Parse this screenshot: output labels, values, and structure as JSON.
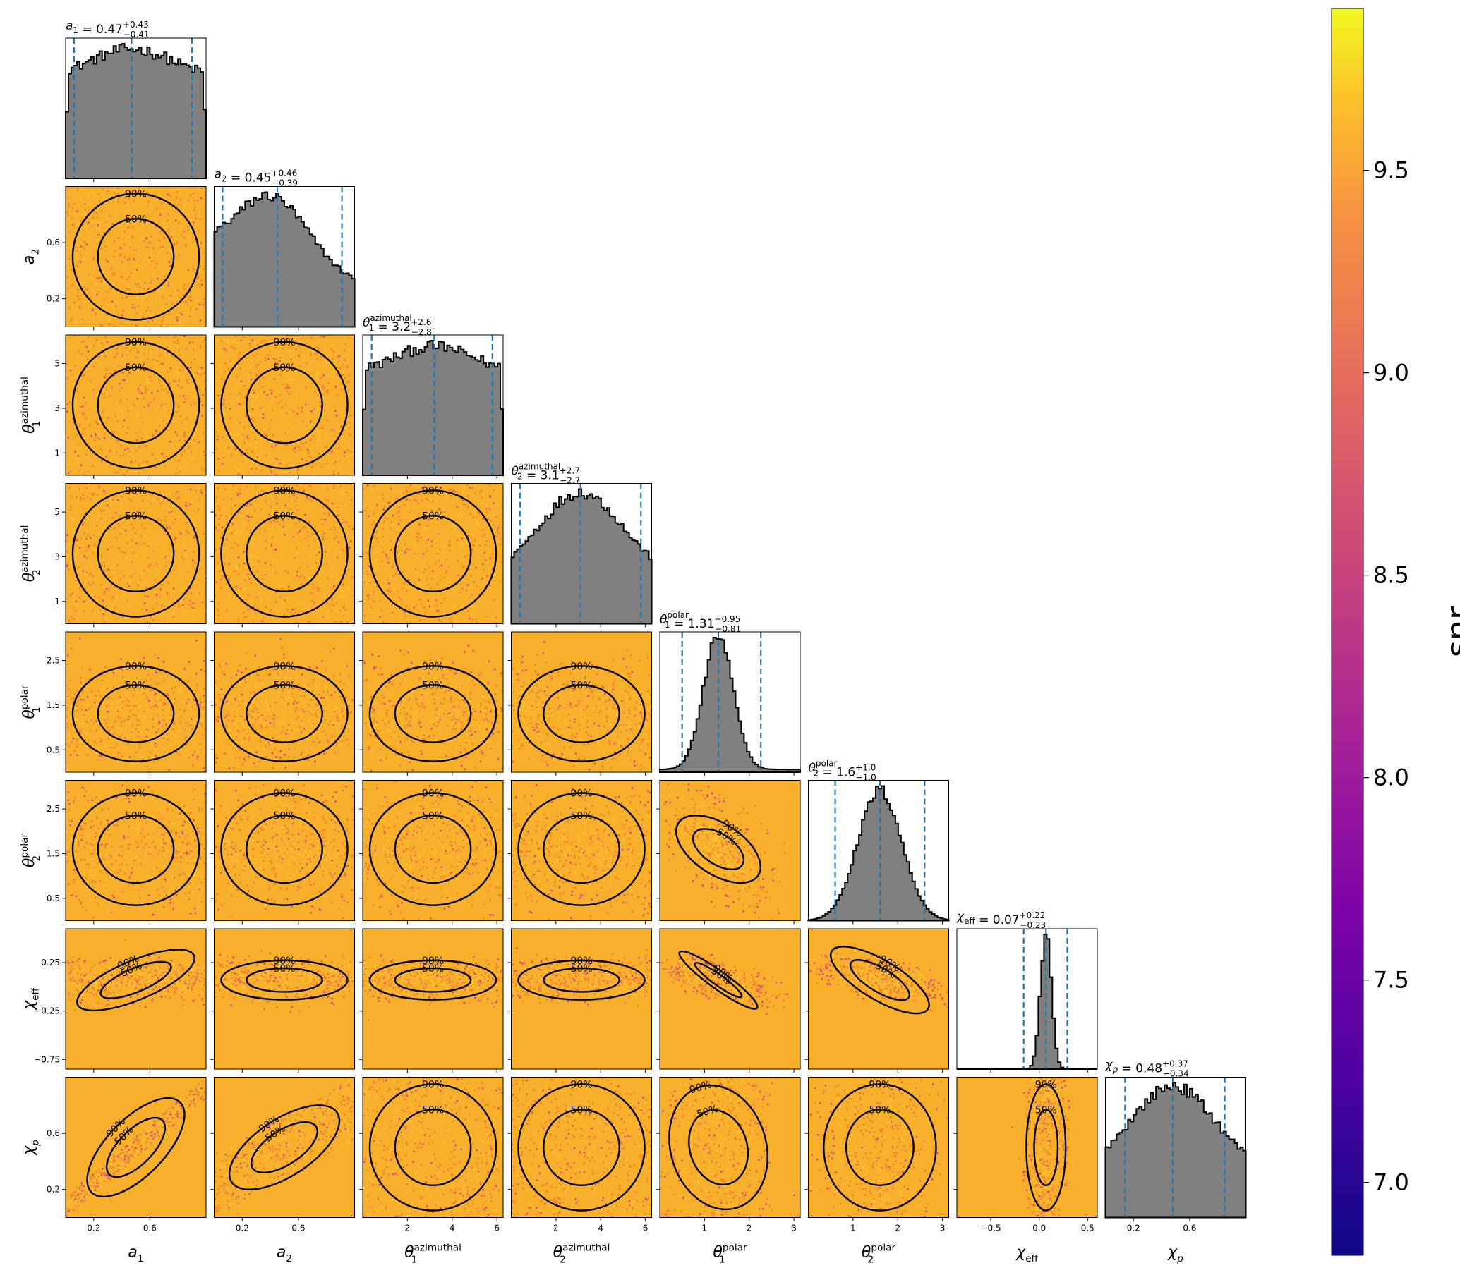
{
  "chart_data": {
    "type": "corner",
    "parameters": [
      {
        "key": "a1",
        "label": "a",
        "sub": "1",
        "sup": "",
        "range": [
          0.0,
          1.0
        ],
        "ticks": [
          {
            "v": 0.2,
            "t": "0.2"
          },
          {
            "v": 0.6,
            "t": "0.6"
          }
        ],
        "title_value": "0.47",
        "title_plus": "+0.43",
        "title_minus": "−0.41",
        "quantiles": [
          0.06,
          0.47,
          0.9
        ],
        "hist_shape": "flat",
        "median": 0.47
      },
      {
        "key": "a2",
        "label": "a",
        "sub": "2",
        "sup": "",
        "range": [
          0.0,
          1.0
        ],
        "ticks": [
          {
            "v": 0.2,
            "t": "0.2"
          },
          {
            "v": 0.6,
            "t": "0.6"
          }
        ],
        "title_value": "0.45",
        "title_plus": "+0.46",
        "title_minus": "−0.39",
        "quantiles": [
          0.06,
          0.45,
          0.91
        ],
        "hist_shape": "decreasing",
        "median": 0.45
      },
      {
        "key": "theta1_az",
        "label": "θ",
        "sub": "1",
        "sup": "azimuthal",
        "range": [
          0.0,
          6.28
        ],
        "ticks": [
          {
            "v": 1,
            "t": "1"
          },
          {
            "v": 3,
            "t": "3"
          },
          {
            "v": 5,
            "t": "5"
          }
        ],
        "xticks": [
          {
            "v": 2,
            "t": "2"
          },
          {
            "v": 4,
            "t": "4"
          },
          {
            "v": 6,
            "t": "6"
          }
        ],
        "title_value": "3.2",
        "title_plus": "+2.6",
        "title_minus": "−2.8",
        "quantiles": [
          0.4,
          3.2,
          5.8
        ],
        "hist_shape": "flat",
        "median": 3.2
      },
      {
        "key": "theta2_az",
        "label": "θ",
        "sub": "2",
        "sup": "azimuthal",
        "range": [
          0.0,
          6.28
        ],
        "ticks": [
          {
            "v": 1,
            "t": "1"
          },
          {
            "v": 3,
            "t": "3"
          },
          {
            "v": 5,
            "t": "5"
          }
        ],
        "xticks": [
          {
            "v": 2,
            "t": "2"
          },
          {
            "v": 4,
            "t": "4"
          },
          {
            "v": 6,
            "t": "6"
          }
        ],
        "title_value": "3.1",
        "title_plus": "+2.7",
        "title_minus": "−2.7",
        "quantiles": [
          0.4,
          3.1,
          5.8
        ],
        "hist_shape": "dome",
        "median": 3.1
      },
      {
        "key": "theta1_pol",
        "label": "θ",
        "sub": "1",
        "sup": "polar",
        "range": [
          0.0,
          3.14
        ],
        "ticks": [
          {
            "v": 0.5,
            "t": "0.5"
          },
          {
            "v": 1.5,
            "t": "1.5"
          },
          {
            "v": 2.5,
            "t": "2.5"
          }
        ],
        "xticks": [
          {
            "v": 1,
            "t": "1"
          },
          {
            "v": 2,
            "t": "2"
          },
          {
            "v": 3,
            "t": "3"
          }
        ],
        "title_value": "1.31",
        "title_plus": "+0.95",
        "title_minus": "−0.81",
        "quantiles": [
          0.5,
          1.31,
          2.26
        ],
        "hist_shape": "peak",
        "median": 1.31
      },
      {
        "key": "theta2_pol",
        "label": "θ",
        "sub": "2",
        "sup": "polar",
        "range": [
          0.0,
          3.14
        ],
        "ticks": [
          {
            "v": 0.5,
            "t": "0.5"
          },
          {
            "v": 1.5,
            "t": "1.5"
          },
          {
            "v": 2.5,
            "t": "2.5"
          }
        ],
        "xticks": [
          {
            "v": 1,
            "t": "1"
          },
          {
            "v": 2,
            "t": "2"
          },
          {
            "v": 3,
            "t": "3"
          }
        ],
        "title_value": "1.6",
        "title_plus": "+1.0",
        "title_minus": "−1.0",
        "quantiles": [
          0.6,
          1.6,
          2.6
        ],
        "hist_shape": "bell",
        "median": 1.6
      },
      {
        "key": "chi_eff",
        "label": "χ",
        "sub": "eff",
        "sup": "",
        "range": [
          -0.85,
          0.6
        ],
        "ticks": [
          {
            "v": -0.75,
            "t": "−0.75"
          },
          {
            "v": -0.25,
            "t": "−0.25"
          },
          {
            "v": 0.25,
            "t": "0.25"
          }
        ],
        "xticks": [
          {
            "v": -0.5,
            "t": "−0.5"
          },
          {
            "v": 0.0,
            "t": "0.0"
          },
          {
            "v": 0.5,
            "t": "0.5"
          }
        ],
        "title_value": "0.07",
        "title_plus": "+0.22",
        "title_minus": "−0.23",
        "quantiles": [
          -0.16,
          0.07,
          0.29
        ],
        "hist_shape": "narrow",
        "median": 0.07
      },
      {
        "key": "chi_p",
        "label": "χ",
        "sub": "p",
        "sup": "",
        "range": [
          0.0,
          1.0
        ],
        "ticks": [
          {
            "v": 0.2,
            "t": "0.2"
          },
          {
            "v": 0.6,
            "t": "0.6"
          }
        ],
        "title_value": "0.48",
        "title_plus": "+0.37",
        "title_minus": "−0.34",
        "quantiles": [
          0.14,
          0.48,
          0.85
        ],
        "hist_shape": "dome",
        "median": 0.48
      }
    ],
    "contour_levels": [
      "50%",
      "90%"
    ],
    "colorbar": {
      "label": "snr",
      "range": [
        6.82,
        9.9
      ],
      "ticks": [
        {
          "v": 7.0,
          "t": "7.0"
        },
        {
          "v": 7.5,
          "t": "7.5"
        },
        {
          "v": 8.0,
          "t": "8.0"
        },
        {
          "v": 8.5,
          "t": "8.5"
        },
        {
          "v": 9.0,
          "t": "9.0"
        },
        {
          "v": 9.5,
          "t": "9.5"
        }
      ],
      "colormap": "plasma"
    },
    "colors": {
      "hist_fill": "#808080",
      "quantile_line": "#1f77b4",
      "contour": "#000000",
      "scatter_main": "#f8b02c",
      "scatter_alt": "#f07a3c",
      "scatter_low": "#d2477f"
    }
  }
}
